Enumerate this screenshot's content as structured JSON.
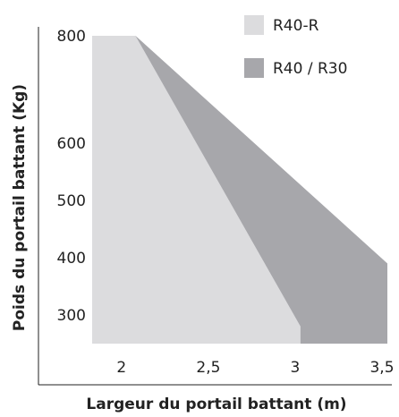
{
  "chart_data": {
    "type": "area",
    "xlabel": "Largeur du portail battant (m)",
    "ylabel": "Poids du portail battant (Kg)",
    "x_ticks": [
      "2",
      "2,5",
      "3",
      "3,5"
    ],
    "y_ticks": [
      "300",
      "400",
      "500",
      "600",
      "800"
    ],
    "xlim": [
      1.8,
      3.5
    ],
    "legend_position": "top-right",
    "series": [
      {
        "name": "R40 / R30",
        "color": "#a7a7ab",
        "points": [
          [
            1.8,
            800
          ],
          [
            2.05,
            800
          ],
          [
            3.5,
            390
          ],
          [
            3.5,
            250
          ],
          [
            1.8,
            250
          ]
        ]
      },
      {
        "name": "R40-R",
        "color": "#dcdcde",
        "points": [
          [
            1.8,
            800
          ],
          [
            2.05,
            800
          ],
          [
            3.0,
            280
          ],
          [
            3.0,
            250
          ],
          [
            1.8,
            250
          ]
        ]
      }
    ]
  }
}
